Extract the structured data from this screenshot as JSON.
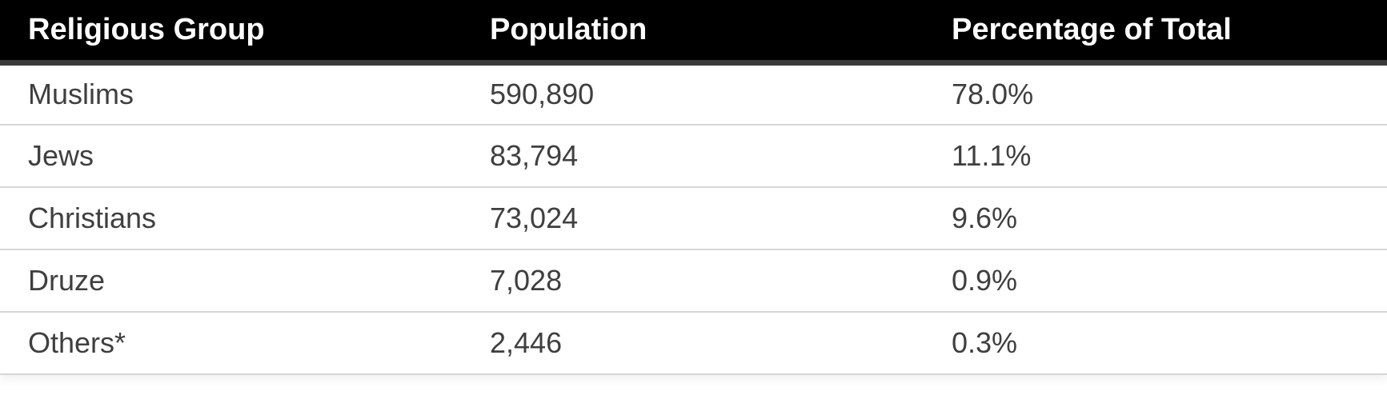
{
  "table": {
    "headers": [
      "Religious Group",
      "Population",
      "Percentage of Total"
    ],
    "rows": [
      [
        "Muslims",
        "590,890",
        "78.0%"
      ],
      [
        "Jews",
        "83,794",
        "11.1%"
      ],
      [
        "Christians",
        "73,024",
        "9.6%"
      ],
      [
        "Druze",
        "7,028",
        "0.9%"
      ],
      [
        "Others*",
        "2,446",
        "0.3%"
      ]
    ]
  },
  "colors": {
    "header_background": "#000000",
    "header_text": "#ffffff",
    "header_underline": "#3a3a3a",
    "cell_text": "#3f3f3f",
    "row_divider": "#d6d6d6"
  }
}
